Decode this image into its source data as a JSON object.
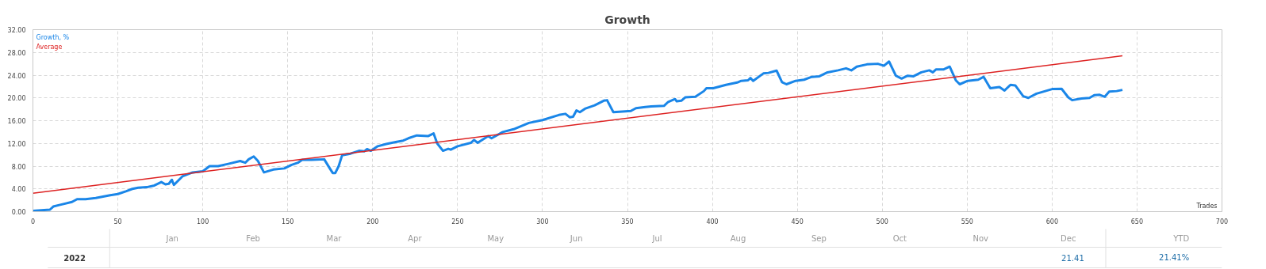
{
  "chart_data": {
    "type": "line",
    "title": "Growth",
    "xlabel": "Trades",
    "legend": "top left",
    "grid": true,
    "xlim": [
      0,
      700
    ],
    "xticks": [
      0,
      50,
      100,
      150,
      200,
      250,
      300,
      350,
      400,
      450,
      500,
      550,
      600,
      650,
      700
    ],
    "ylim": [
      0,
      32
    ],
    "yticks": [
      {
        "value": 0,
        "label": "0.00"
      },
      {
        "value": 4,
        "label": "4.00"
      },
      {
        "value": 8,
        "label": "8.00"
      },
      {
        "value": 12,
        "label": "12.00"
      },
      {
        "value": 16,
        "label": "16.00"
      },
      {
        "value": 20,
        "label": "20.00"
      },
      {
        "value": 24,
        "label": "24.00"
      },
      {
        "value": 28,
        "label": "28.00"
      },
      {
        "value": 32,
        "label": "32.00"
      }
    ],
    "series": [
      {
        "name": "Growth, %",
        "color": "#1a86e8",
        "x": [
          0,
          10,
          12,
          16,
          23,
          26,
          31,
          37,
          45.5,
          50,
          55,
          58.5,
          62,
          67,
          71.5,
          75.6,
          78,
          80,
          81.8,
          83,
          88,
          94,
          100,
          104,
          109,
          115,
          122,
          125,
          127,
          130,
          132.5,
          136,
          141.5,
          148,
          152,
          156,
          158.5,
          164,
          171.5,
          175,
          176.5,
          178,
          180,
          182,
          187,
          192,
          195,
          196.7,
          199,
          203,
          208,
          213,
          218,
          221,
          226,
          232.8,
          235.9,
          238,
          241.4,
          244.5,
          246,
          250,
          257.8,
          259.7,
          261.8,
          268,
          270,
          276.6,
          283,
          292,
          300,
          309.6,
          313.5,
          316,
          318,
          320,
          322,
          325,
          330.7,
          336,
          338,
          341.7,
          347,
          352,
          355,
          360.5,
          364,
          371.5,
          374,
          378,
          379,
          381.7,
          384,
          390,
          395,
          396.5,
          400.5,
          403.6,
          408,
          414.6,
          417,
          421,
          422.4,
          424,
          430,
          433,
          437.8,
          441,
          443.6,
          449,
          454,
          458.5,
          463,
          467.8,
          474,
          478.7,
          481.8,
          485,
          491,
          497.4,
          501,
          504,
          508,
          511.4,
          515,
          518.4,
          523,
          527.7,
          529.8,
          531.6,
          536,
          539.7,
          543.3,
          545.6,
          550.3,
          556.5,
          559.7,
          563.6,
          569,
          572,
          575.5,
          578.3,
          583,
          586,
          590.8,
          600,
          605.6,
          609.5,
          611.8,
          617.3,
          622,
          625,
          628,
          631,
          633.6,
          638,
          641.4
        ],
        "values": [
          0.15,
          0.35,
          0.9,
          1.2,
          1.7,
          2.2,
          2.2,
          2.4,
          2.9,
          3.1,
          3.6,
          4.0,
          4.2,
          4.3,
          4.6,
          5.2,
          4.8,
          4.9,
          5.6,
          4.7,
          6.2,
          6.9,
          7.1,
          8.0,
          8.0,
          8.4,
          8.9,
          8.6,
          9.2,
          9.7,
          8.9,
          6.9,
          7.4,
          7.6,
          8.2,
          8.6,
          9.1,
          9.1,
          9.2,
          7.5,
          6.8,
          6.8,
          8.0,
          9.9,
          10.2,
          10.7,
          10.6,
          11.0,
          10.7,
          11.5,
          11.9,
          12.2,
          12.5,
          12.9,
          13.4,
          13.3,
          13.75,
          12.0,
          10.7,
          11.05,
          10.9,
          11.5,
          12.1,
          12.6,
          12.1,
          13.3,
          12.9,
          14.0,
          14.5,
          15.6,
          16.1,
          17.0,
          17.2,
          16.6,
          16.7,
          17.8,
          17.5,
          18.1,
          18.7,
          19.5,
          19.6,
          17.5,
          17.6,
          17.7,
          18.2,
          18.4,
          18.5,
          18.6,
          19.3,
          19.8,
          19.4,
          19.5,
          20.1,
          20.2,
          21.2,
          21.7,
          21.7,
          21.95,
          22.3,
          22.7,
          23.0,
          23.1,
          23.5,
          23.0,
          24.3,
          24.4,
          24.8,
          22.75,
          22.4,
          23.0,
          23.2,
          23.7,
          23.8,
          24.5,
          24.85,
          25.2,
          24.85,
          25.5,
          25.9,
          26.0,
          25.65,
          26.4,
          23.9,
          23.4,
          23.9,
          23.8,
          24.5,
          24.85,
          24.5,
          25.0,
          25.0,
          25.5,
          23.1,
          22.4,
          23.0,
          23.2,
          23.7,
          21.7,
          21.9,
          21.3,
          22.3,
          22.2,
          20.3,
          20.0,
          20.75,
          21.55,
          21.6,
          20.1,
          19.6,
          19.9,
          20.0,
          20.5,
          20.55,
          20.2,
          21.1,
          21.2,
          21.41
        ]
      },
      {
        "name": "Average",
        "color": "#dd2222",
        "x": [
          0,
          641.4
        ],
        "values": [
          3.25,
          27.4
        ]
      }
    ],
    "annotations": [
      "Jan",
      "Feb",
      "Mar",
      "Apr",
      "May",
      "Jun",
      "Jul",
      "Aug",
      "Sep",
      "Oct",
      "Nov",
      "Dec",
      "YTD",
      "2022",
      "21.41",
      "21.41%"
    ]
  }
}
